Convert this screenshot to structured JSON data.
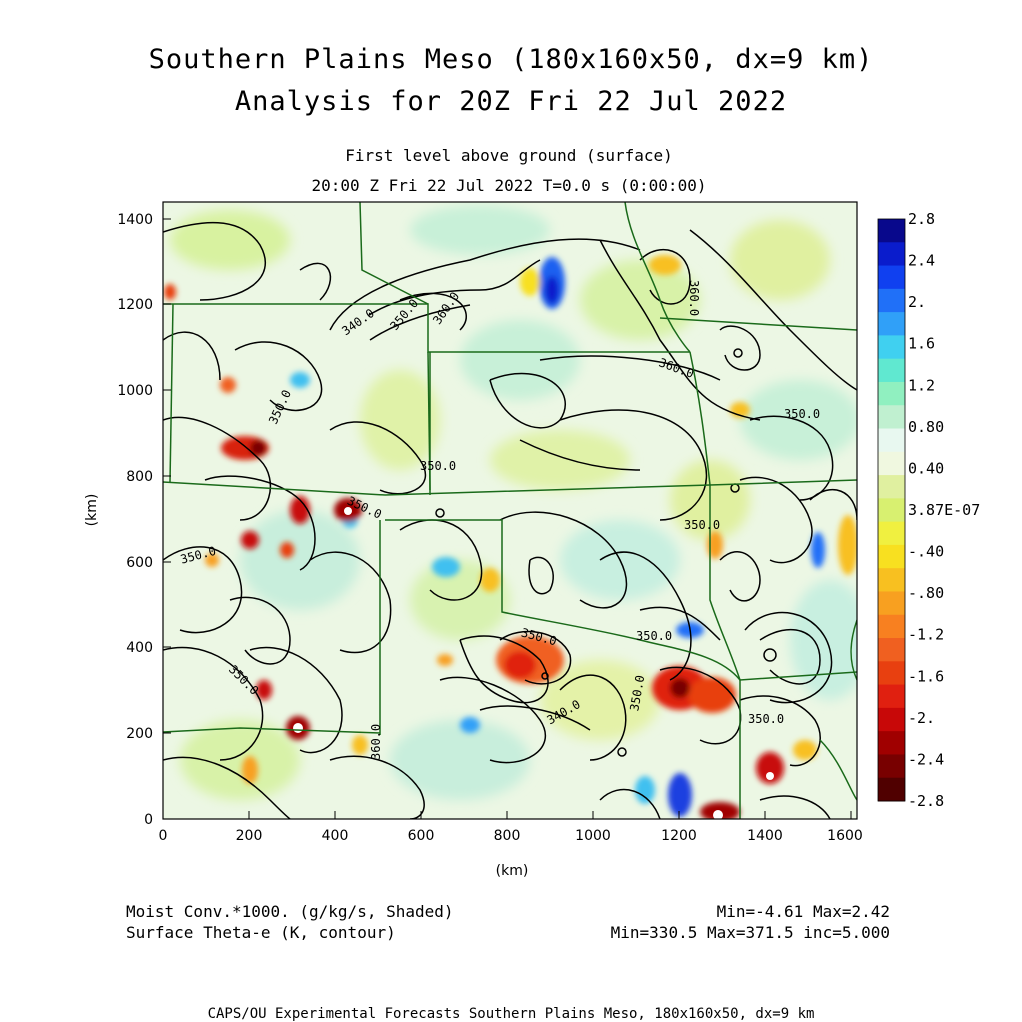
{
  "header": {
    "title_line1": "Southern Plains Meso (180x160x50, dx=9 km)",
    "title_line2": "Analysis for 20Z Fri 22 Jul 2022",
    "subtitle_line1": "First level above ground (surface)",
    "subtitle_line2": "20:00 Z Fri 22 Jul 2022    T=0.0 s (0:00:00)"
  },
  "axes": {
    "x_unit": "(km)",
    "y_unit": "(km)",
    "x_ticks": [
      "0",
      "200",
      "400",
      "600",
      "800",
      "1000",
      "1200",
      "1400",
      "1600"
    ],
    "y_ticks": [
      "0",
      "200",
      "400",
      "600",
      "800",
      "1000",
      "1200",
      "1400"
    ]
  },
  "colorbar": {
    "labels": [
      "2.8",
      "2.4",
      "2.",
      "1.6",
      "1.2",
      "0.80",
      "0.40",
      "3.87E-07",
      "-.40",
      "-.80",
      "-1.2",
      "-1.6",
      "-2.",
      "-2.4",
      "-2.8"
    ],
    "colors": [
      "#08088c",
      "#0a1ccc",
      "#1040f0",
      "#2070f8",
      "#30a0f8",
      "#40d0f0",
      "#60e8d0",
      "#90f0c0",
      "#c0f0d0",
      "#e8f8f0",
      "#f0f8e0",
      "#e0f0a0",
      "#d8f070",
      "#f0f040",
      "#f8e020",
      "#f8c020",
      "#f8a020",
      "#f88020",
      "#f06020",
      "#e84010",
      "#e02010",
      "#c80808",
      "#a00000",
      "#780000",
      "#500000"
    ]
  },
  "contour_labels": [
    "340.0",
    "350.0",
    "360.0",
    "350.0",
    "350.0",
    "350.0",
    "360.0",
    "360.0",
    "350.0",
    "350.0",
    "350.0",
    "350.0",
    "350.0",
    "340.0",
    "350.0",
    "350.0",
    "360.0",
    "350.0"
  ],
  "footer": {
    "left_line1": "Moist Conv.*1000. (g/kg/s, Shaded)",
    "left_line2": "Surface Theta-e (K, contour)",
    "right_line1": "Min=-4.61 Max=2.42",
    "right_line2": "Min=330.5 Max=371.5 inc=5.000",
    "credit": "CAPS/OU Experimental Forecasts  Southern Plains Meso, 180x160x50, dx=9 km"
  }
}
